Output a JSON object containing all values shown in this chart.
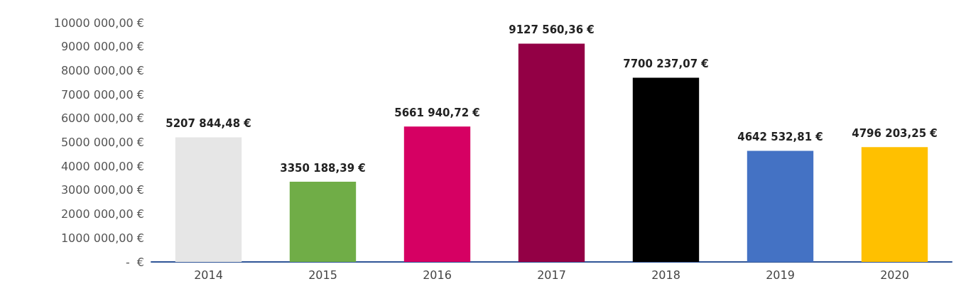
{
  "chart_data": {
    "type": "bar",
    "categories": [
      "2014",
      "2015",
      "2016",
      "2017",
      "2018",
      "2019",
      "2020"
    ],
    "values": [
      5207844.48,
      3350188.39,
      5661940.72,
      9127560.36,
      7700237.07,
      4642532.81,
      4796203.25
    ],
    "value_labels": [
      "5207 844,48 €",
      "3350 188,39 €",
      "5661 940,72 €",
      "9127 560,36 €",
      "7700 237,07 €",
      "4642 532,81 €",
      "4796 203,25 €"
    ],
    "colors": [
      "#e6e6e6",
      "#70ad47",
      "#d60063",
      "#930045",
      "#000000",
      "#4472c4",
      "#ffc000"
    ],
    "ylim": [
      0,
      10000000
    ],
    "yticks": [
      {
        "value": 0,
        "label": "-  €"
      },
      {
        "value": 1000000,
        "label": "1000 000,00 €"
      },
      {
        "value": 2000000,
        "label": "2000 000,00 €"
      },
      {
        "value": 3000000,
        "label": "3000 000,00 €"
      },
      {
        "value": 4000000,
        "label": "4000 000,00 €"
      },
      {
        "value": 5000000,
        "label": "5000 000,00 €"
      },
      {
        "value": 6000000,
        "label": "6000 000,00 €"
      },
      {
        "value": 7000000,
        "label": "7000 000,00 €"
      },
      {
        "value": 8000000,
        "label": "8000 000,00 €"
      },
      {
        "value": 9000000,
        "label": "9000 000,00 €"
      },
      {
        "value": 10000000,
        "label": "10000 000,00 €"
      }
    ],
    "grid": false
  }
}
